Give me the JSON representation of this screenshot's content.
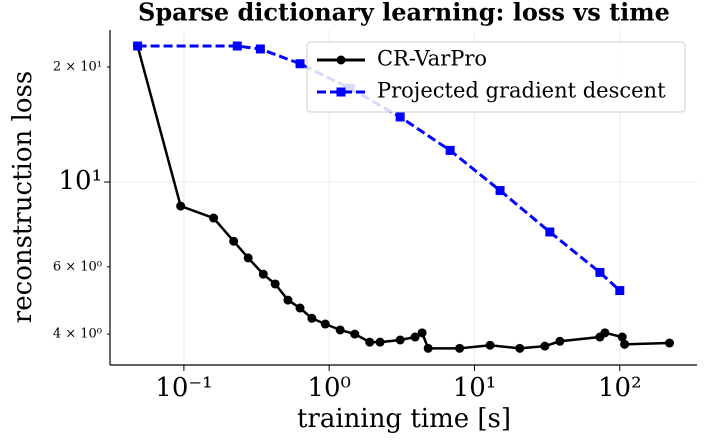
{
  "chart_data": {
    "type": "line",
    "title": "Sparse dictionary learning: loss vs time",
    "x_label": "training time [s]",
    "y_label": "reconstruction loss",
    "xscale": "log",
    "yscale": "log",
    "xlim": [
      0.031,
      340
    ],
    "ylim": [
      3.32,
      25
    ],
    "xticks": [
      {
        "value": 0.1,
        "label": "10⁻¹"
      },
      {
        "value": 1,
        "label": "10⁰"
      },
      {
        "value": 10,
        "label": "10¹"
      },
      {
        "value": 100,
        "label": "10²"
      }
    ],
    "yticks": [
      {
        "value": 4,
        "label": "4 × 10⁰"
      },
      {
        "value": 6,
        "label": "6 × 10⁰"
      },
      {
        "value": 10,
        "label": "10¹"
      },
      {
        "value": 20,
        "label": "2 × 10¹"
      }
    ],
    "grid": true,
    "legend": "upper right",
    "series": [
      {
        "name": "CR-VarPro",
        "color": "#000000",
        "marker": "circle",
        "dash": false,
        "x": [
          0.048,
          0.095,
          0.16,
          0.22,
          0.277,
          0.352,
          0.425,
          0.52,
          0.63,
          0.76,
          0.94,
          1.19,
          1.5,
          1.9,
          2.24,
          3.08,
          3.9,
          4.36,
          4.8,
          7.9,
          12.8,
          20.5,
          30.5,
          38.7,
          73,
          79,
          104,
          108,
          220
        ],
        "values": [
          22.7,
          8.65,
          8.05,
          7.0,
          6.33,
          5.74,
          5.41,
          4.91,
          4.68,
          4.4,
          4.25,
          4.1,
          4.0,
          3.81,
          3.81,
          3.86,
          3.93,
          4.03,
          3.67,
          3.67,
          3.74,
          3.67,
          3.72,
          3.83,
          3.93,
          4.03,
          3.93,
          3.76,
          3.79
        ]
      },
      {
        "name": "Projected gradient descent",
        "color": "#0000ff",
        "marker": "square",
        "dash": true,
        "x": [
          0.048,
          0.233,
          0.336,
          0.63,
          1.39,
          3.08,
          6.8,
          15,
          33,
          73,
          100
        ],
        "values": [
          22.7,
          22.7,
          22.3,
          20.4,
          17.6,
          14.8,
          12.1,
          9.5,
          7.4,
          5.8,
          5.2
        ]
      }
    ]
  }
}
